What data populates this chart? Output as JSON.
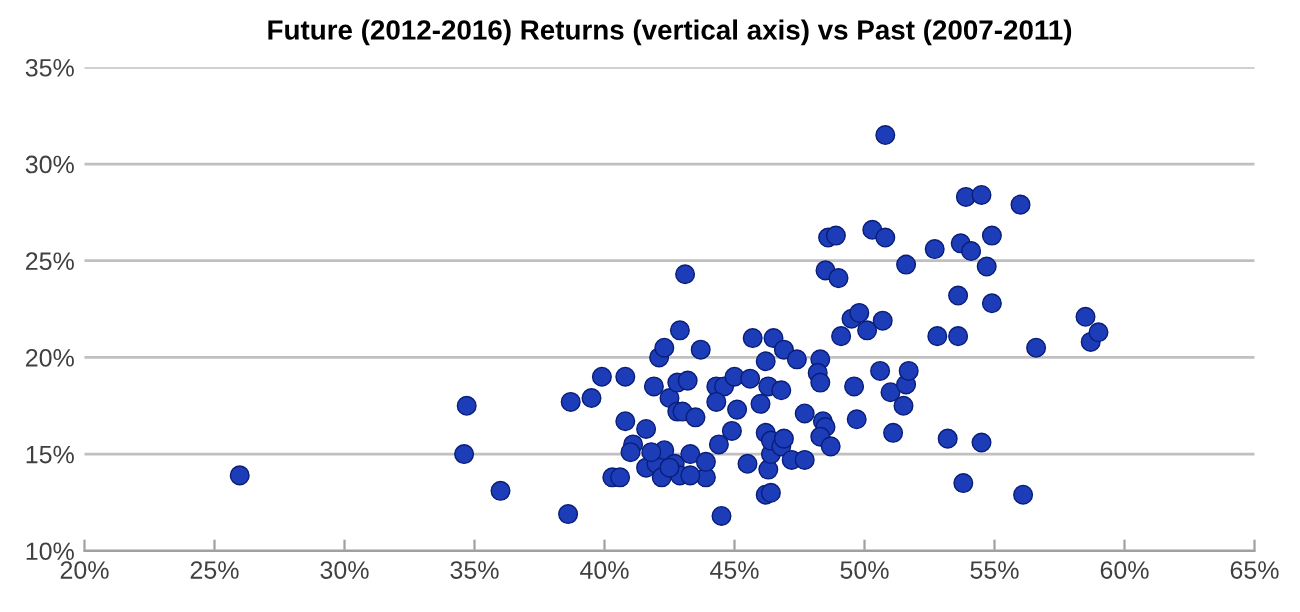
{
  "chart_data": {
    "type": "scatter",
    "title": "Future (2012-2016) Returns (vertical axis) vs Past (2007-2011)",
    "series": [
      {
        "color": "#1c3cb8",
        "x": [
          25.97,
          34.7,
          34.6,
          36.0,
          38.6,
          38.7,
          39.5,
          39.9,
          40.8,
          40.3,
          40.6,
          40.8,
          41.6,
          41.1,
          41.6,
          42.0,
          42.2,
          42.3,
          41.9,
          42.1,
          42.3,
          42.5,
          42.8,
          42.9,
          43.2,
          43.1,
          42.8,
          43.0,
          43.5,
          43.7,
          42.7,
          42.9,
          43.3,
          43.9,
          43.9,
          43.3,
          44.3,
          44.6,
          44.3,
          44.4,
          44.5,
          44.9,
          45.0,
          45.1,
          45.5,
          45.6,
          45.7,
          46.0,
          46.2,
          46.2,
          46.3,
          46.2,
          46.4,
          46.3,
          46.4,
          46.4,
          46.8,
          46.9,
          46.5,
          46.8,
          46.9,
          47.2,
          47.4,
          47.7,
          47.7,
          48.3,
          48.2,
          48.3,
          48.4,
          48.5,
          48.3,
          48.7,
          48.5,
          49.0,
          48.6,
          48.9,
          49.1,
          49.5,
          49.8,
          50.1,
          49.6,
          49.7,
          50.3,
          50.8,
          50.8,
          50.7,
          50.6,
          51.0,
          51.1,
          51.5,
          51.6,
          51.7,
          51.6,
          52.7,
          52.8,
          53.2,
          53.6,
          53.6,
          53.7,
          54.1,
          53.8,
          53.9,
          54.5,
          54.7,
          54.9,
          54.9,
          54.5,
          56.0,
          56.1,
          56.6,
          58.5,
          58.7,
          59.0,
          41.0,
          42.5,
          41.8
        ],
        "values": [
          13.9,
          17.5,
          15.0,
          13.1,
          11.9,
          17.7,
          17.9,
          19.0,
          19.0,
          13.8,
          13.8,
          16.7,
          16.3,
          15.5,
          14.3,
          14.5,
          13.8,
          15.2,
          18.5,
          20.0,
          20.5,
          17.9,
          18.7,
          21.4,
          18.8,
          24.3,
          17.2,
          17.2,
          16.9,
          20.4,
          14.5,
          13.9,
          15.0,
          13.8,
          14.6,
          13.9,
          18.5,
          18.5,
          17.7,
          15.5,
          11.8,
          16.2,
          19.0,
          17.3,
          14.5,
          18.9,
          21.0,
          17.6,
          19.8,
          16.1,
          18.5,
          12.9,
          13.0,
          14.2,
          15.0,
          15.7,
          15.4,
          15.8,
          21.0,
          18.3,
          20.4,
          14.7,
          19.9,
          14.7,
          17.1,
          19.9,
          19.2,
          18.7,
          16.7,
          16.4,
          15.9,
          15.4,
          24.5,
          24.1,
          26.2,
          26.3,
          21.1,
          22.0,
          22.3,
          21.4,
          18.5,
          16.8,
          26.6,
          26.2,
          31.5,
          21.9,
          19.3,
          18.2,
          16.1,
          17.5,
          18.6,
          19.3,
          24.8,
          25.6,
          21.1,
          15.8,
          23.2,
          21.1,
          25.9,
          25.5,
          13.5,
          28.3,
          28.4,
          24.7,
          26.3,
          22.8,
          15.6,
          27.9,
          12.9,
          20.5,
          22.1,
          20.8,
          21.3,
          15.1,
          14.3,
          15.1
        ]
      }
    ],
    "xlim": [
      20,
      65
    ],
    "xticks": [
      {
        "value": 20,
        "label": "20%"
      },
      {
        "value": 25,
        "label": "25%"
      },
      {
        "value": 30,
        "label": "30%"
      },
      {
        "value": 35,
        "label": "35%"
      },
      {
        "value": 40,
        "label": "40%"
      },
      {
        "value": 45,
        "label": "45%"
      },
      {
        "value": 50,
        "label": "50%"
      },
      {
        "value": 55,
        "label": "55%"
      },
      {
        "value": 60,
        "label": "60%"
      },
      {
        "value": 65,
        "label": "65%"
      }
    ],
    "ylim": [
      10,
      35
    ],
    "yticks": [
      {
        "value": 10,
        "label": "10%"
      },
      {
        "value": 15,
        "label": "15%"
      },
      {
        "value": 20,
        "label": "20%"
      },
      {
        "value": 25,
        "label": "25%"
      },
      {
        "value": 30,
        "label": "30%"
      },
      {
        "value": 35,
        "label": "35%"
      }
    ],
    "grid": "y",
    "marker": "circle"
  }
}
